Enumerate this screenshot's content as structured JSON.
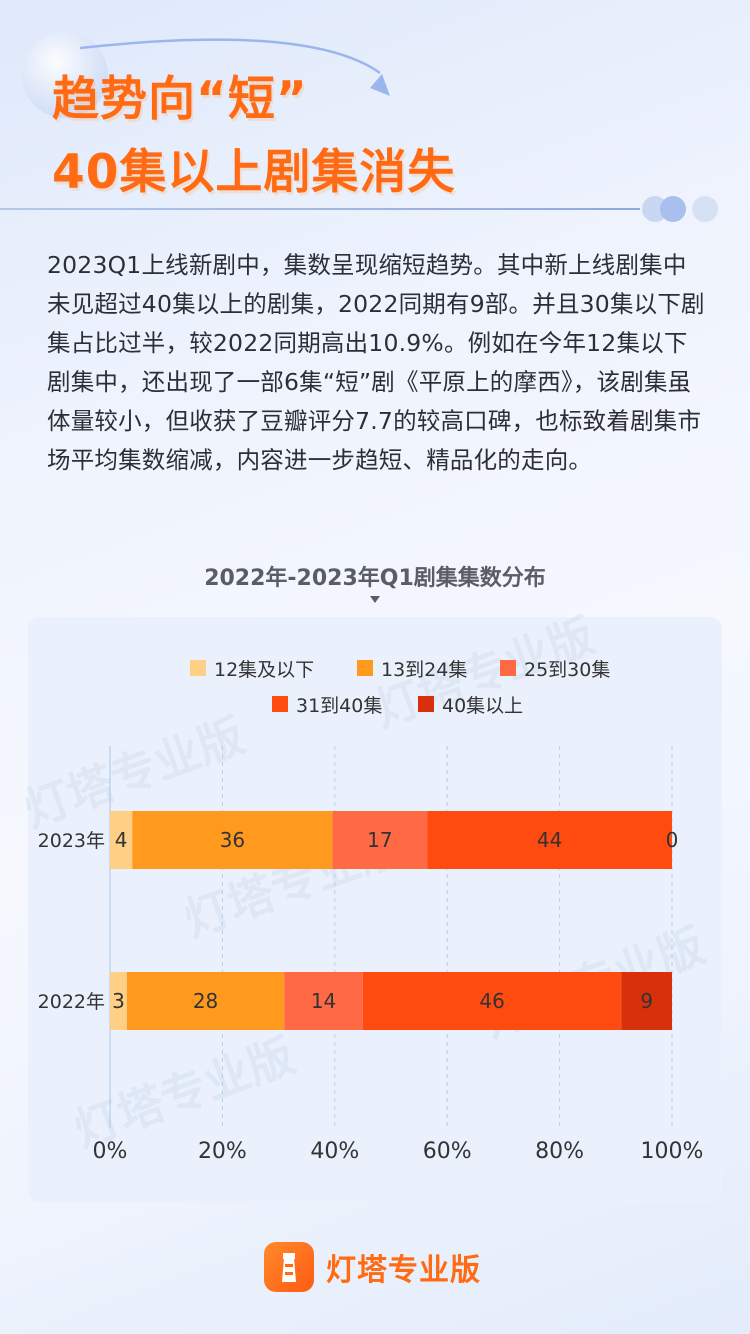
{
  "header": {
    "title_line1": "趋势向“短”",
    "title_line2": "40集以上剧集消失"
  },
  "intro": {
    "paragraph": "2023Q1上线新剧中，集数呈现缩短趋势。其中新上线剧集中未见超过40集以上的剧集，2022同期有9部。并且30集以下剧集占比过半，较2022同期高出10.9%。例如在今年12集以下剧集中，还出现了一部6集“短”剧《平原上的摩西》，该剧集虽体量较小，但收获了豆瓣评分7.7的较高口碑，也标致着剧集市场平均集数缩减，内容进一步趋短、精品化的走向。"
  },
  "chart_data": {
    "type": "bar",
    "orientation": "horizontal",
    "stacked": true,
    "title": "2022年-2023年Q1剧集集数分布",
    "categories": [
      "2023年",
      "2022年"
    ],
    "series": [
      {
        "name": "12集及以下",
        "color": "#ffcf86",
        "values": [
          4,
          3
        ]
      },
      {
        "name": "13到24集",
        "color": "#ff9a1f",
        "values": [
          36,
          28
        ]
      },
      {
        "name": "25到30集",
        "color": "#ff6a45",
        "values": [
          17,
          14
        ]
      },
      {
        "name": "31到40集",
        "color": "#ff4a10",
        "values": [
          44,
          46
        ]
      },
      {
        "name": "40集以上",
        "color": "#d8300a",
        "values": [
          0,
          9
        ]
      }
    ],
    "xlim": [
      0,
      100
    ],
    "x_ticks": [
      "0%",
      "20%",
      "40%",
      "60%",
      "80%",
      "100%"
    ],
    "grid": true,
    "legend_position": "top"
  },
  "watermark": "灯塔专业版",
  "footer": {
    "logo_text": "灯塔专业版"
  }
}
